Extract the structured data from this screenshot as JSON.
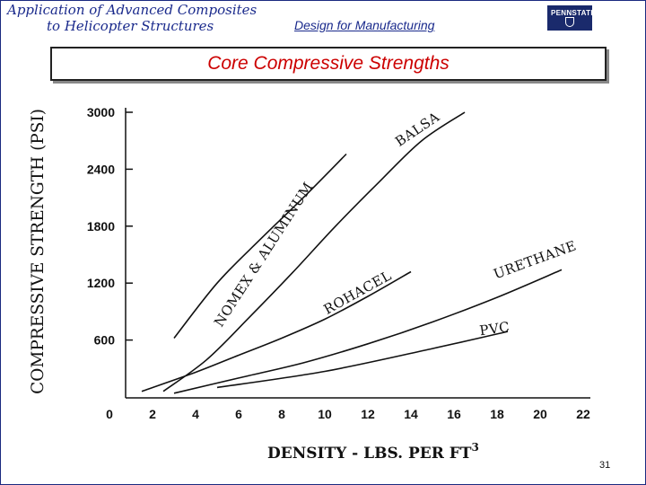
{
  "header": {
    "course_line1": "Application of Advanced Composites",
    "course_line2": "to Helicopter Structures",
    "section": "Design for Manufacturing",
    "logo_text": "PENNSTATE"
  },
  "slide_title": "Core Compressive Strengths",
  "page_number": "31",
  "chart_data": {
    "type": "line",
    "ylabel": "COMPRESSIVE STRENGTH (PSI)",
    "xlabel_prefix": "DENSITY  - LBS. PER FT",
    "xlabel_sup": "3",
    "xlim": [
      0,
      22
    ],
    "ylim": [
      0,
      3000
    ],
    "xticks": [
      0,
      2,
      4,
      6,
      8,
      10,
      12,
      14,
      16,
      18,
      20,
      22
    ],
    "yticks": [
      600,
      1200,
      1800,
      2400,
      3000
    ],
    "grid": false,
    "series": [
      {
        "name": "BALSA",
        "x": [
          2.5,
          4.5,
          6.5,
          8.5,
          10.5,
          12.5,
          14.5,
          16.5
        ],
        "y": [
          60,
          390,
          840,
          1310,
          1800,
          2260,
          2700,
          3000
        ]
      },
      {
        "name": "NOMEX & ALUMINUM",
        "x": [
          3,
          5,
          7,
          9,
          11
        ],
        "y": [
          620,
          1200,
          1660,
          2100,
          2560
        ]
      },
      {
        "name": "ROHACEL",
        "x": [
          1.5,
          4,
          6,
          8,
          10,
          12,
          14
        ],
        "y": [
          60,
          260,
          440,
          620,
          820,
          1060,
          1320
        ]
      },
      {
        "name": "URETHANE",
        "x": [
          3,
          6,
          9,
          12,
          15,
          18,
          21
        ],
        "y": [
          40,
          200,
          360,
          560,
          790,
          1050,
          1340
        ]
      },
      {
        "name": "PVC",
        "x": [
          5,
          10,
          15,
          18.5
        ],
        "y": [
          100,
          270,
          510,
          690
        ]
      }
    ]
  }
}
